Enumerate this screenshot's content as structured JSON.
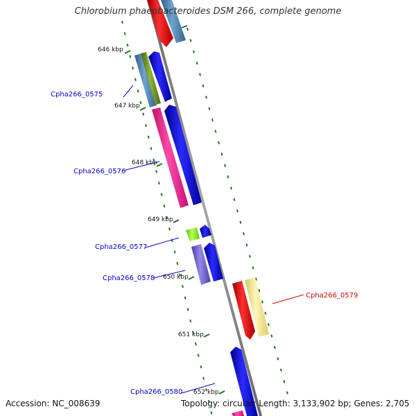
{
  "title": "Chlorobium phaeobacteroides DSM 266, complete genome",
  "footer": {
    "accession": "Accession: NC_008639",
    "summary": "Topology: circular; Length: 3,133,902 bp; Genes: 2,705"
  },
  "scale_labels": [
    "646 kbp",
    "647 kbp",
    "648 kbp",
    "649 kbp",
    "650 kbp",
    "651 kbp",
    "652 kbp"
  ],
  "gene_labels": [
    {
      "name": "Cpha266_0575",
      "color": "#0000cc"
    },
    {
      "name": "Cpha266_0576",
      "color": "#0000cc"
    },
    {
      "name": "Cpha266_0577",
      "color": "#0000cc"
    },
    {
      "name": "Cpha266_0578",
      "color": "#0000cc"
    },
    {
      "name": "Cpha266_0579",
      "color": "#cc0000"
    },
    {
      "name": "Cpha266_0580",
      "color": "#0000cc"
    }
  ],
  "colors": {
    "backbone": "#888888",
    "tick": "#1a7a1a",
    "blue_gene": "#0000ee",
    "red_gene": "#ee0000",
    "pink_gene": "#ff1493",
    "steelblue_gene": "#4682b4",
    "olive_gene": "#6b8e23",
    "lime_gene": "#7cfc00",
    "slate_gene": "#6a5acd",
    "khaki_gene": "#f0e68c"
  }
}
